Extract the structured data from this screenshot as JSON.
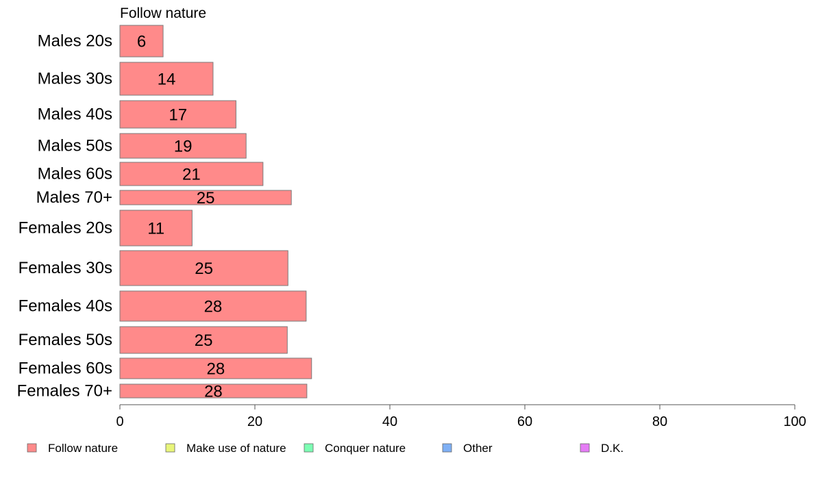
{
  "chart_data": {
    "type": "bar",
    "orientation": "horizontal",
    "title": "Follow nature",
    "categories": [
      "Males 20s",
      "Males 30s",
      "Males 40s",
      "Males 50s",
      "Males 60s",
      "Males 70+",
      "Females 20s",
      "Females 30s",
      "Females 40s",
      "Females 50s",
      "Females 60s",
      "Females 70+"
    ],
    "series": [
      {
        "name": "Follow nature",
        "color": "#ff8a8a",
        "values": [
          6.4,
          13.8,
          17.2,
          18.7,
          21.2,
          25.4,
          10.7,
          24.9,
          27.6,
          24.8,
          28.4,
          27.7
        ],
        "labels": [
          "6",
          "14",
          "17",
          "19",
          "21",
          "25",
          "11",
          "25",
          "28",
          "25",
          "28",
          "28"
        ]
      }
    ],
    "xlim": [
      0,
      100
    ],
    "xticks": [
      0,
      20,
      40,
      60,
      80,
      100
    ],
    "grid": false,
    "legend": {
      "placement": "bottom",
      "items": [
        {
          "name": "Follow nature",
          "color": "#ff8a8a"
        },
        {
          "name": "Make use of nature",
          "color": "#e8f57a"
        },
        {
          "name": "Conquer nature",
          "color": "#7dffb4"
        },
        {
          "name": "Other",
          "color": "#7fb0f5"
        },
        {
          "name": "D.K.",
          "color": "#e57cf5"
        }
      ]
    }
  }
}
